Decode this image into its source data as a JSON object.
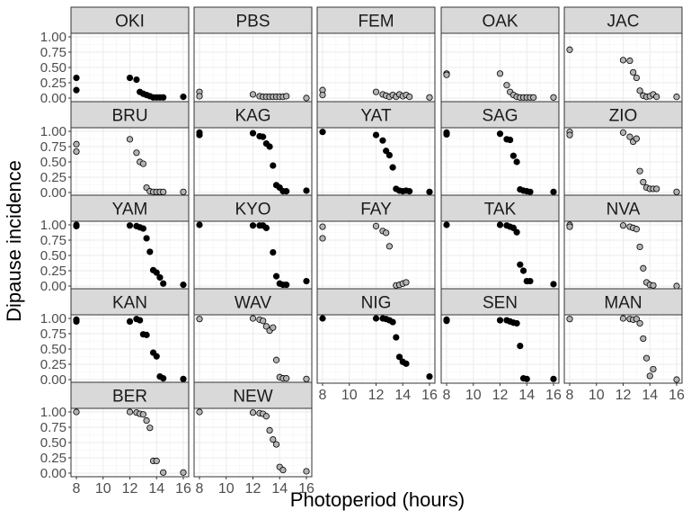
{
  "chart_data": {
    "type": "scatter",
    "xlabel": "Photoperiod (hours)",
    "ylabel": "Dipause incidence",
    "xlim": [
      8,
      16
    ],
    "ylim": [
      0,
      1
    ],
    "x_ticks": [
      8,
      10,
      12,
      14,
      16
    ],
    "y_ticks": [
      0,
      0.25,
      0.5,
      0.75,
      1
    ],
    "y_tick_labels": [
      "0.00",
      "0.25",
      "0.50",
      "0.75",
      "1.00"
    ],
    "grid": true,
    "legend": "none",
    "colors": {
      "black": "#000000",
      "grey": "#b3b3b3",
      "strip": "#d9d9d9",
      "panel_border": "#333333",
      "grid": "#ebebeb"
    },
    "panels": [
      {
        "name": "OKI",
        "fill": "black",
        "points": [
          [
            8,
            0.33
          ],
          [
            8,
            0.13
          ],
          [
            12,
            0.33
          ],
          [
            12.5,
            0.3
          ],
          [
            12.75,
            0.1
          ],
          [
            13,
            0.07
          ],
          [
            13.25,
            0.05
          ],
          [
            13.5,
            0.03
          ],
          [
            13.75,
            0.01
          ],
          [
            14,
            0.01
          ],
          [
            14.25,
            0.01
          ],
          [
            14.5,
            0.01
          ],
          [
            16,
            0.02
          ]
        ]
      },
      {
        "name": "PBS",
        "fill": "grey",
        "points": [
          [
            8,
            0.1
          ],
          [
            8,
            0.03
          ],
          [
            12,
            0.06
          ],
          [
            12.5,
            0.03
          ],
          [
            12.75,
            0.02
          ],
          [
            13,
            0.02
          ],
          [
            13.25,
            0.02
          ],
          [
            13.5,
            0.02
          ],
          [
            13.75,
            0.02
          ],
          [
            14,
            0.02
          ],
          [
            14.25,
            0.02
          ],
          [
            14.5,
            0.03
          ],
          [
            16,
            0.0
          ]
        ]
      },
      {
        "name": "FEM",
        "fill": "grey",
        "points": [
          [
            8,
            0.13
          ],
          [
            8,
            0.05
          ],
          [
            12,
            0.1
          ],
          [
            12.5,
            0.06
          ],
          [
            12.75,
            0.04
          ],
          [
            13,
            0.02
          ],
          [
            13.25,
            0.05
          ],
          [
            13.5,
            0.02
          ],
          [
            13.75,
            0.06
          ],
          [
            14,
            0.03
          ],
          [
            14.25,
            0.05
          ],
          [
            14.5,
            0.02
          ],
          [
            16,
            0.01
          ]
        ]
      },
      {
        "name": "OAK",
        "fill": "grey",
        "points": [
          [
            8,
            0.4
          ],
          [
            8,
            0.38
          ],
          [
            12,
            0.4
          ],
          [
            12.5,
            0.21
          ],
          [
            12.75,
            0.1
          ],
          [
            13,
            0.05
          ],
          [
            13.25,
            0.02
          ],
          [
            13.5,
            0.01
          ],
          [
            13.75,
            0.01
          ],
          [
            14,
            0.01
          ],
          [
            14.25,
            0.01
          ],
          [
            14.5,
            0.01
          ],
          [
            16,
            0.01
          ]
        ]
      },
      {
        "name": "JAC",
        "fill": "grey",
        "points": [
          [
            8,
            0.79
          ],
          [
            12,
            0.62
          ],
          [
            12.5,
            0.61
          ],
          [
            12.75,
            0.42
          ],
          [
            13,
            0.33
          ],
          [
            13.25,
            0.12
          ],
          [
            13.5,
            0.04
          ],
          [
            13.75,
            0.02
          ],
          [
            14,
            0.03
          ],
          [
            14.25,
            0.06
          ],
          [
            14.5,
            0.02
          ],
          [
            16,
            0.02
          ]
        ]
      },
      {
        "name": "BRU",
        "fill": "grey",
        "points": [
          [
            8,
            0.79
          ],
          [
            8,
            0.67
          ],
          [
            12,
            0.87
          ],
          [
            12.5,
            0.65
          ],
          [
            12.75,
            0.5
          ],
          [
            13,
            0.47
          ],
          [
            13.25,
            0.08
          ],
          [
            13.5,
            0.02
          ],
          [
            13.75,
            0.01
          ],
          [
            14,
            0.01
          ],
          [
            14.25,
            0.01
          ],
          [
            14.5,
            0.01
          ],
          [
            16,
            0.01
          ]
        ]
      },
      {
        "name": "KAG",
        "fill": "black",
        "points": [
          [
            8,
            0.98
          ],
          [
            8,
            0.94
          ],
          [
            12,
            0.97
          ],
          [
            12.5,
            0.92
          ],
          [
            12.75,
            0.91
          ],
          [
            13,
            0.8
          ],
          [
            13.25,
            0.75
          ],
          [
            13.5,
            0.44
          ],
          [
            13.75,
            0.12
          ],
          [
            14,
            0.08
          ],
          [
            14.25,
            0.02
          ],
          [
            14.5,
            0.02
          ],
          [
            16,
            0.03
          ]
        ]
      },
      {
        "name": "YAT",
        "fill": "black",
        "points": [
          [
            8,
            0.99
          ],
          [
            12,
            0.94
          ],
          [
            12.5,
            0.85
          ],
          [
            12.75,
            0.68
          ],
          [
            13,
            0.61
          ],
          [
            13.25,
            0.41
          ],
          [
            13.5,
            0.06
          ],
          [
            13.75,
            0.03
          ],
          [
            14,
            0.02
          ],
          [
            14.25,
            0.03
          ],
          [
            14.5,
            0.02
          ],
          [
            16,
            0.01
          ]
        ]
      },
      {
        "name": "SAG",
        "fill": "black",
        "points": [
          [
            8,
            0.98
          ],
          [
            8,
            0.95
          ],
          [
            12,
            0.96
          ],
          [
            12.5,
            0.87
          ],
          [
            12.75,
            0.86
          ],
          [
            13,
            0.6
          ],
          [
            13.25,
            0.5
          ],
          [
            13.5,
            0.05
          ],
          [
            13.75,
            0.03
          ],
          [
            14,
            0.02
          ],
          [
            14.25,
            0.01
          ],
          [
            16,
            0.01
          ]
        ]
      },
      {
        "name": "ZIO",
        "fill": "grey",
        "points": [
          [
            8,
            0.99
          ],
          [
            8,
            0.94
          ],
          [
            12,
            0.98
          ],
          [
            12.5,
            0.91
          ],
          [
            12.75,
            0.83
          ],
          [
            13,
            0.88
          ],
          [
            13.25,
            0.35
          ],
          [
            13.5,
            0.17
          ],
          [
            13.75,
            0.08
          ],
          [
            14,
            0.06
          ],
          [
            14.25,
            0.06
          ],
          [
            14.5,
            0.06
          ],
          [
            16,
            0.01
          ]
        ]
      },
      {
        "name": "YAM",
        "fill": "black",
        "points": [
          [
            8,
            1.0
          ],
          [
            8,
            0.98
          ],
          [
            12,
            0.99
          ],
          [
            12.5,
            0.98
          ],
          [
            12.75,
            0.96
          ],
          [
            13,
            0.94
          ],
          [
            13.25,
            0.78
          ],
          [
            13.5,
            0.56
          ],
          [
            13.75,
            0.26
          ],
          [
            14,
            0.22
          ],
          [
            14.25,
            0.14
          ],
          [
            14.5,
            0.04
          ],
          [
            16,
            0.02
          ]
        ]
      },
      {
        "name": "KYO",
        "fill": "black",
        "points": [
          [
            8,
            1.0
          ],
          [
            12,
            0.99
          ],
          [
            12.5,
            0.99
          ],
          [
            12.75,
            0.99
          ],
          [
            13,
            0.95
          ],
          [
            13.5,
            0.55
          ],
          [
            13.75,
            0.16
          ],
          [
            14,
            0.04
          ],
          [
            14.25,
            0.02
          ],
          [
            14.5,
            0.02
          ],
          [
            16,
            0.08
          ]
        ]
      },
      {
        "name": "FAY",
        "fill": "grey",
        "points": [
          [
            8,
            0.97
          ],
          [
            8,
            0.78
          ],
          [
            12,
            0.98
          ],
          [
            12.5,
            0.9
          ],
          [
            12.75,
            0.87
          ],
          [
            13,
            0.65
          ],
          [
            13.5,
            0.01
          ],
          [
            13.75,
            0.02
          ],
          [
            14,
            0.04
          ],
          [
            14.25,
            0.06
          ]
        ]
      },
      {
        "name": "TAK",
        "fill": "black",
        "points": [
          [
            8,
            1.0
          ],
          [
            12,
            1.0
          ],
          [
            12.5,
            0.99
          ],
          [
            12.75,
            0.97
          ],
          [
            13,
            0.95
          ],
          [
            13.25,
            0.88
          ],
          [
            13.5,
            0.35
          ],
          [
            13.75,
            0.25
          ],
          [
            14,
            0.08
          ],
          [
            14.25,
            0.08
          ],
          [
            16,
            0.03
          ]
        ]
      },
      {
        "name": "NVA",
        "fill": "grey",
        "points": [
          [
            8,
            1.0
          ],
          [
            8,
            0.97
          ],
          [
            12,
            0.99
          ],
          [
            12.5,
            0.97
          ],
          [
            12.75,
            0.95
          ],
          [
            13,
            0.93
          ],
          [
            13.25,
            0.64
          ],
          [
            13.5,
            0.29
          ],
          [
            13.75,
            0.06
          ],
          [
            14,
            0.02
          ],
          [
            14.25,
            0.01
          ],
          [
            16,
            0.0
          ]
        ]
      },
      {
        "name": "KAN",
        "fill": "black",
        "points": [
          [
            8,
            0.98
          ],
          [
            8,
            0.95
          ],
          [
            12,
            0.95
          ],
          [
            12.5,
            0.99
          ],
          [
            12.75,
            0.97
          ],
          [
            13,
            0.74
          ],
          [
            13.25,
            0.73
          ],
          [
            13.75,
            0.44
          ],
          [
            14,
            0.38
          ],
          [
            14.25,
            0.05
          ],
          [
            14.5,
            0.02
          ],
          [
            16,
            0.01
          ]
        ]
      },
      {
        "name": "WAV",
        "fill": "grey",
        "points": [
          [
            8,
            0.99
          ],
          [
            12,
            1.0
          ],
          [
            12.5,
            0.98
          ],
          [
            12.75,
            0.96
          ],
          [
            13,
            0.87
          ],
          [
            13.25,
            0.8
          ],
          [
            13.5,
            0.85
          ],
          [
            13.75,
            0.32
          ],
          [
            14,
            0.04
          ],
          [
            14.25,
            0.02
          ],
          [
            14.5,
            0.02
          ],
          [
            16,
            0.01
          ]
        ]
      },
      {
        "name": "NIG",
        "fill": "black",
        "points": [
          [
            8,
            1.0
          ],
          [
            12,
            1.0
          ],
          [
            12.5,
            1.0
          ],
          [
            12.75,
            0.99
          ],
          [
            13,
            0.97
          ],
          [
            13.25,
            0.94
          ],
          [
            13.5,
            0.69
          ],
          [
            13.75,
            0.37
          ],
          [
            14,
            0.29
          ],
          [
            14.25,
            0.26
          ],
          [
            16,
            0.05
          ]
        ]
      },
      {
        "name": "SEN",
        "fill": "black",
        "points": [
          [
            8,
            0.98
          ],
          [
            8,
            0.96
          ],
          [
            12,
            0.97
          ],
          [
            12.5,
            0.97
          ],
          [
            12.75,
            0.95
          ],
          [
            13,
            0.93
          ],
          [
            13.25,
            0.92
          ],
          [
            13.5,
            0.55
          ],
          [
            13.75,
            0.02
          ],
          [
            14,
            0.01
          ],
          [
            16,
            0.01
          ]
        ]
      },
      {
        "name": "MAN",
        "fill": "grey",
        "points": [
          [
            8,
            0.99
          ],
          [
            12,
            1.0
          ],
          [
            12.5,
            0.99
          ],
          [
            12.75,
            0.98
          ],
          [
            13,
            0.99
          ],
          [
            13.25,
            0.92
          ],
          [
            13.5,
            0.67
          ],
          [
            13.75,
            0.35
          ],
          [
            14,
            0.06
          ],
          [
            14.25,
            0.17
          ],
          [
            16,
            0.0
          ]
        ]
      },
      {
        "name": "BER",
        "fill": "grey",
        "points": [
          [
            8,
            1.0
          ],
          [
            12,
            1.0
          ],
          [
            12.5,
            0.99
          ],
          [
            12.75,
            0.97
          ],
          [
            13,
            0.96
          ],
          [
            13.25,
            0.86
          ],
          [
            13.5,
            0.74
          ],
          [
            13.75,
            0.2
          ],
          [
            14,
            0.2
          ],
          [
            14.5,
            0.01
          ],
          [
            16,
            0.01
          ]
        ]
      },
      {
        "name": "NEW",
        "fill": "grey",
        "points": [
          [
            8,
            1.0
          ],
          [
            12,
            0.99
          ],
          [
            12.5,
            0.98
          ],
          [
            12.75,
            0.97
          ],
          [
            13,
            0.93
          ],
          [
            13.25,
            0.7
          ],
          [
            13.5,
            0.55
          ],
          [
            13.75,
            0.47
          ],
          [
            14,
            0.1
          ],
          [
            14.25,
            0.05
          ],
          [
            16,
            0.03
          ]
        ]
      }
    ]
  }
}
